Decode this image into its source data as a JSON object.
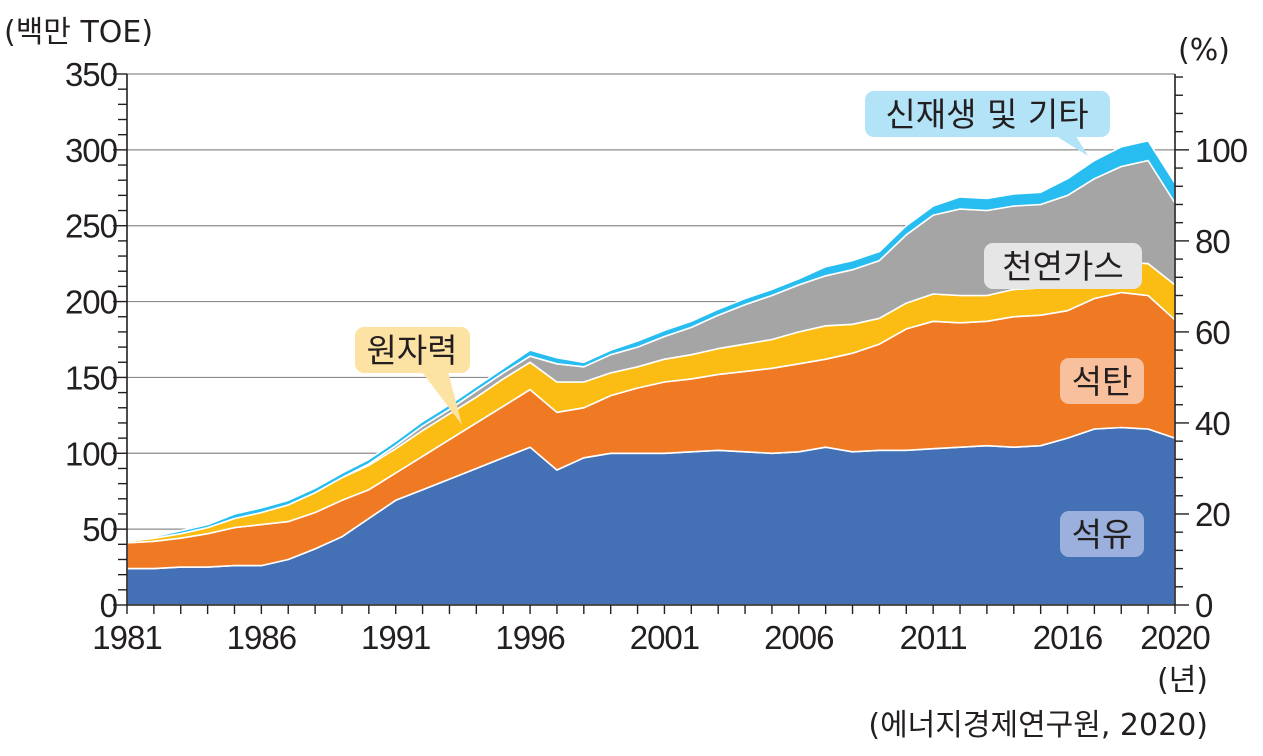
{
  "chart_data": {
    "type": "area",
    "stacked": true,
    "y_label": "(백만 TOE)",
    "y2_label": "(%)",
    "x_unit": "(년)",
    "source": "(에너지경제연구원, 2020)",
    "ylim": [
      0,
      350
    ],
    "y_ticks": [
      0,
      50,
      100,
      150,
      200,
      250,
      300,
      350
    ],
    "y2_ticks": [
      0,
      20,
      40,
      60,
      80,
      100
    ],
    "x_ticks": [
      1981,
      1986,
      1991,
      1996,
      2001,
      2006,
      2011,
      2016,
      2020
    ],
    "xlim": [
      1981,
      2020
    ],
    "x": [
      1981,
      1982,
      1983,
      1984,
      1985,
      1986,
      1987,
      1988,
      1989,
      1990,
      1991,
      1992,
      1993,
      1994,
      1995,
      1996,
      1997,
      1998,
      1999,
      2000,
      2001,
      2002,
      2003,
      2004,
      2005,
      2006,
      2007,
      2008,
      2009,
      2010,
      2011,
      2012,
      2013,
      2014,
      2015,
      2016,
      2017,
      2018,
      2019,
      2020
    ],
    "series": [
      {
        "name": "석유",
        "values": [
          24,
          24,
          25,
          25,
          26,
          26,
          30,
          37,
          45,
          57,
          69,
          76,
          83,
          90,
          97,
          104,
          89,
          97,
          100,
          100,
          100,
          101,
          102,
          101,
          100,
          101,
          104,
          101,
          102,
          102,
          103,
          104,
          105,
          104,
          105,
          110,
          116,
          117,
          116,
          110
        ]
      },
      {
        "name": "석탄",
        "values": [
          17,
          18,
          19,
          22,
          25,
          27,
          25,
          24,
          24,
          19,
          18,
          22,
          26,
          30,
          34,
          38,
          38,
          33,
          38,
          43,
          47,
          48,
          50,
          53,
          56,
          58,
          58,
          65,
          70,
          80,
          84,
          82,
          82,
          86,
          86,
          84,
          86,
          89,
          88,
          78
        ]
      },
      {
        "name": "원자력",
        "values": [
          1,
          2,
          3,
          4,
          6,
          8,
          11,
          13,
          15,
          16,
          16,
          17,
          17,
          17,
          18,
          18,
          20,
          17,
          15,
          14,
          15,
          16,
          17,
          18,
          19,
          21,
          22,
          19,
          17,
          17,
          18,
          18,
          17,
          18,
          18,
          19,
          19,
          20,
          21,
          23
        ]
      },
      {
        "name": "천연가스",
        "values": [
          0,
          0,
          0,
          0,
          0,
          0,
          0,
          0,
          0,
          1,
          2,
          3,
          3,
          4,
          4,
          4,
          12,
          10,
          12,
          13,
          15,
          18,
          22,
          26,
          29,
          31,
          33,
          36,
          38,
          45,
          52,
          57,
          56,
          55,
          55,
          57,
          60,
          63,
          68,
          54
        ]
      },
      {
        "name": "신재생 및 기타",
        "values": [
          1,
          1,
          2,
          2,
          3,
          3,
          3,
          3,
          3,
          3,
          3,
          3,
          3,
          3,
          3,
          4,
          4,
          3,
          3,
          4,
          4,
          4,
          4,
          4,
          4,
          4,
          6,
          6,
          6,
          6,
          6,
          8,
          8,
          8,
          8,
          11,
          12,
          13,
          13,
          13
        ]
      }
    ],
    "colors": [
      "#4470b6",
      "#f07a23",
      "#fbbd14",
      "#a5a5a5",
      "#27bdf0"
    ],
    "labels": {
      "nuclear": "원자력",
      "renewable": "신재생 및 기타",
      "gas": "천연가스",
      "coal": "석탄",
      "oil": "석유"
    }
  }
}
